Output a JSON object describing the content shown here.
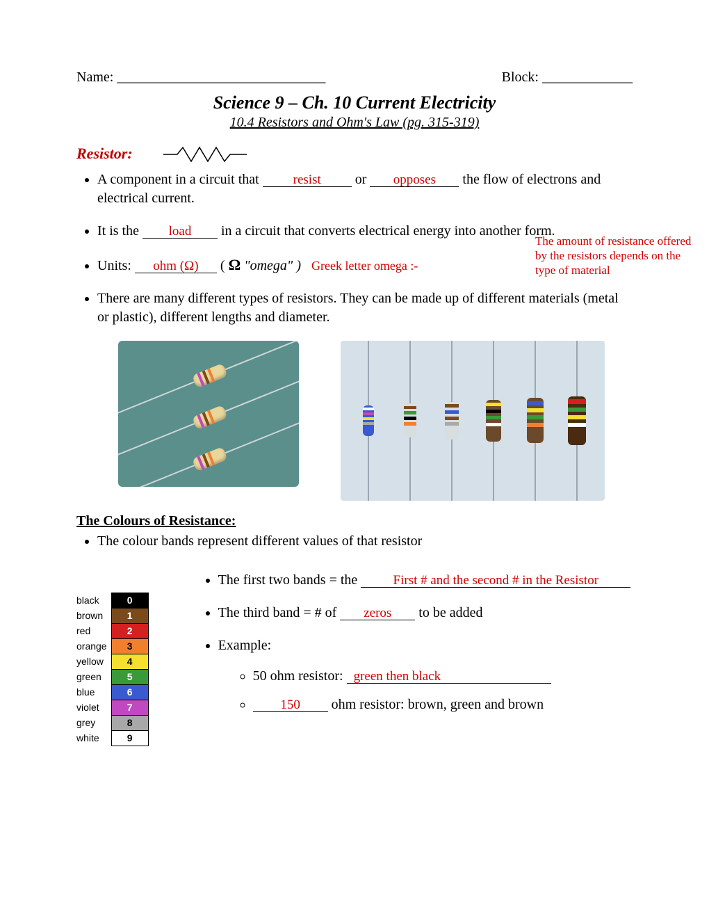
{
  "header": {
    "name_label": "Name:",
    "name_blank": "______________________________",
    "block_label": "Block:",
    "block_blank": "_____________"
  },
  "title": "Science 9 – Ch. 10 Current Electricity",
  "subtitle": "10.4 Resistors and Ohm's Law (pg. 315-319)",
  "section1": {
    "heading": "Resistor:",
    "bullet1_a": "A component in a circuit that ",
    "blank1": "resist",
    "bullet1_b": " or ",
    "blank2": "opposes",
    "bullet1_c": " the flow of electrons and electrical current.",
    "bullet2_a": "It is the ",
    "blank3": "load",
    "bullet2_b": " in a circuit that converts electrical energy into another form.",
    "bullet3_a": "Units: ",
    "blank4": "ohm (Ω)",
    "bullet3_b": "  ( ",
    "omega": "Ω",
    "bullet3_c": " \"omega\" )",
    "hand_inline": "Greek letter omega :-",
    "hand_note": "The amount of resistance offered by the resistors depends on the type of material",
    "bullet4": "There are many different types of resistors. They can be made up of different materials (metal or plastic), different lengths and diameter."
  },
  "section2": {
    "heading": "The Colours of Resistance:",
    "bullet1": "The colour bands represent different values of that resistor",
    "sub1_a": "The first two bands = the ",
    "blank5": "First # and the second # in the Resistor",
    "sub2_a": "The third band = # of ",
    "blank6": "zeros",
    "sub2_b": " to be added",
    "sub3": "Example:",
    "ex1_a": "50 ohm resistor: ",
    "ex1_blank": "green then black",
    "ex2_blank": "150",
    "ex2_b": " ohm resistor: brown, green and brown"
  },
  "color_table": [
    {
      "label": "black",
      "bg": "#000000",
      "fg": "#ffffff",
      "num": "0"
    },
    {
      "label": "brown",
      "bg": "#7a4a1a",
      "fg": "#ffffff",
      "num": "1"
    },
    {
      "label": "red",
      "bg": "#d42020",
      "fg": "#ffffff",
      "num": "2"
    },
    {
      "label": "orange",
      "bg": "#f08030",
      "fg": "#000000",
      "num": "3"
    },
    {
      "label": "yellow",
      "bg": "#f5e030",
      "fg": "#000000",
      "num": "4"
    },
    {
      "label": "green",
      "bg": "#3a9a3a",
      "fg": "#ffffff",
      "num": "5"
    },
    {
      "label": "blue",
      "bg": "#3a5ad0",
      "fg": "#ffffff",
      "num": "6"
    },
    {
      "label": "violet",
      "bg": "#c048c0",
      "fg": "#ffffff",
      "num": "7"
    },
    {
      "label": "grey",
      "bg": "#a8a8a8",
      "fg": "#000000",
      "num": "8"
    },
    {
      "label": "white",
      "bg": "#ffffff",
      "fg": "#000000",
      "num": "9"
    }
  ],
  "img2_resistors": [
    {
      "body": "#3a5ad0",
      "bands": [
        "#ffffff",
        "#c048c0",
        "#f5e030",
        "#a8a8a8"
      ]
    },
    {
      "body": "#d8dde0",
      "bands": [
        "#7a4a1a",
        "#3a9a3a",
        "#000000",
        "#f08030"
      ]
    },
    {
      "body": "#d8dde0",
      "bands": [
        "#7a4a1a",
        "#3a5ad0",
        "#7a4a1a",
        "#a8a8a8"
      ]
    },
    {
      "body": "#6a4a2a",
      "bands": [
        "#f5e030",
        "#000000",
        "#3a9a3a",
        "#ffffff"
      ]
    },
    {
      "body": "#6a4a2a",
      "bands": [
        "#3a5ad0",
        "#f5e030",
        "#3a9a3a",
        "#f08030"
      ]
    },
    {
      "body": "#4a2a10",
      "bands": [
        "#d42020",
        "#3a9a3a",
        "#f5e030",
        "#ffffff"
      ]
    }
  ]
}
